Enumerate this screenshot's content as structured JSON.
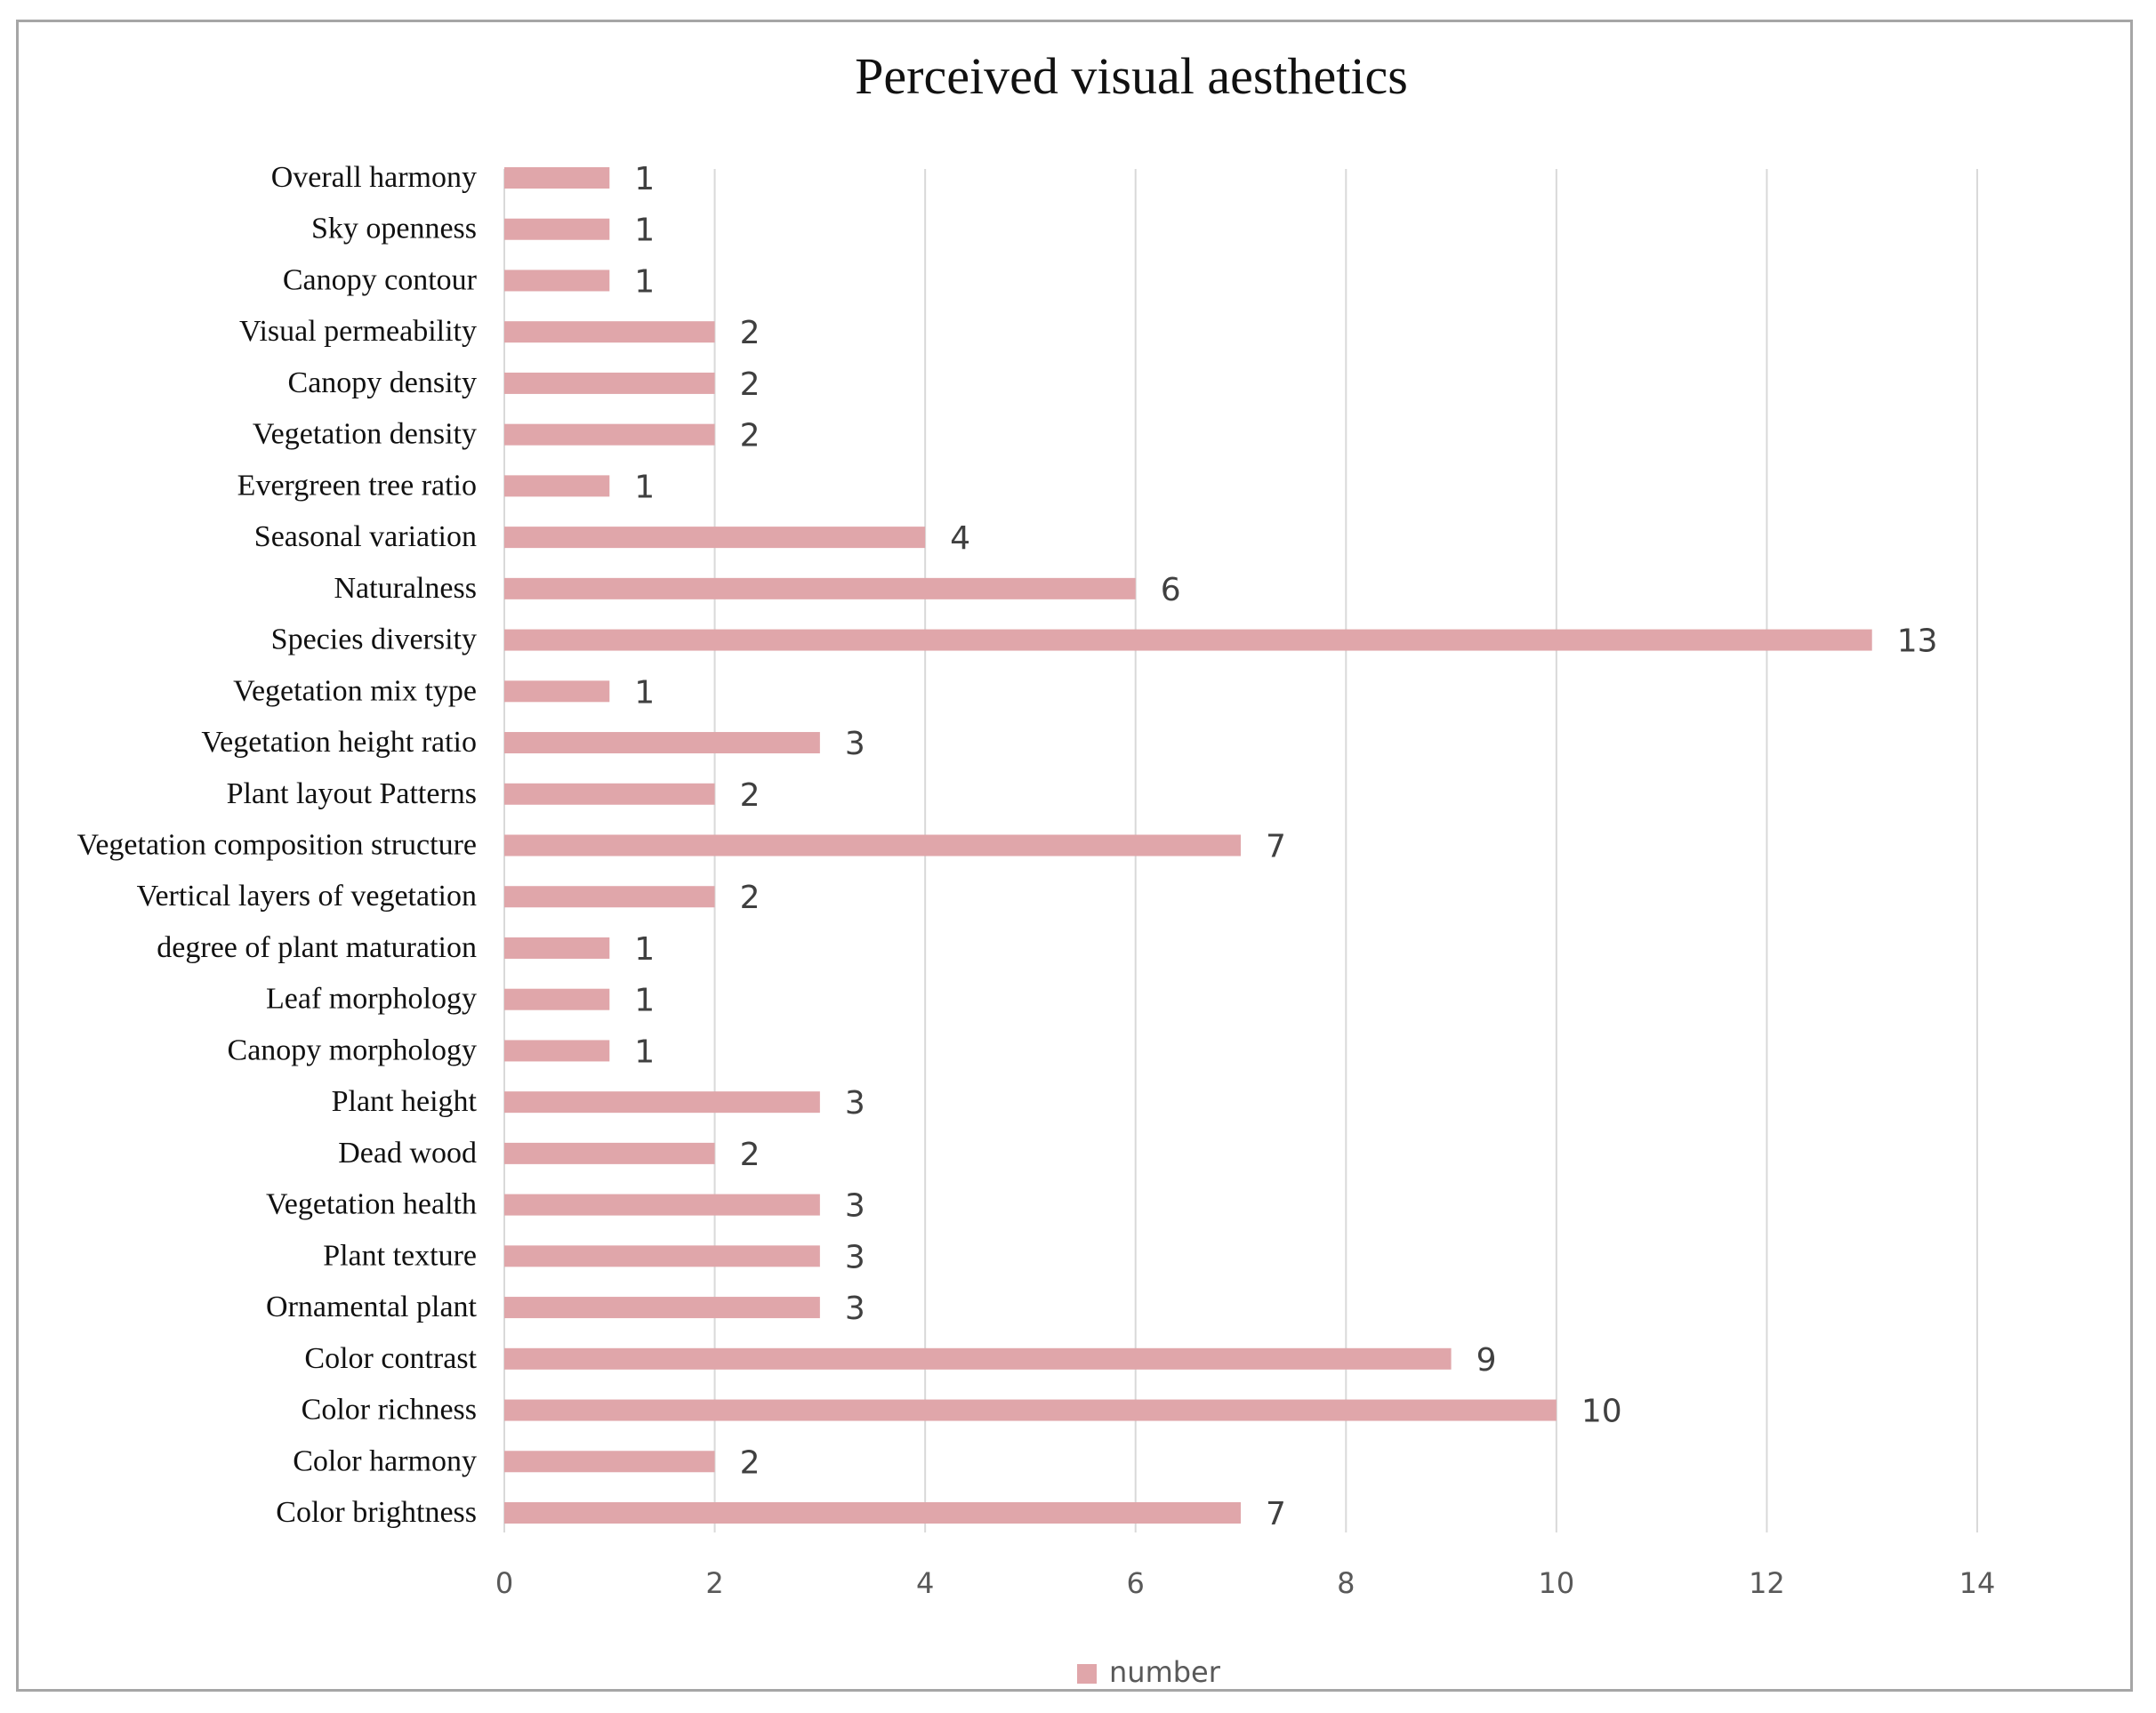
{
  "chart_data": {
    "type": "bar",
    "orientation": "horizontal",
    "title": "Perceived visual aesthetics",
    "categories": [
      "Overall harmony",
      "Sky openness",
      "Canopy contour",
      "Visual permeability",
      "Canopy density",
      "Vegetation density",
      "Evergreen tree ratio",
      "Seasonal variation",
      "Naturalness",
      "Species diversity",
      "Vegetation mix type",
      "Vegetation height ratio",
      "Plant layout Patterns",
      "Vegetation composition structure",
      "Vertical layers of vegetation",
      "degree of plant maturation",
      "Leaf morphology",
      "Canopy morphology",
      "Plant height",
      "Dead wood",
      "Vegetation health",
      "Plant texture",
      "Ornamental plant",
      "Color contrast",
      "Color richness",
      "Color harmony",
      "Color brightness"
    ],
    "series": [
      {
        "name": "number",
        "color": "#e0a6aa",
        "values": [
          1,
          1,
          1,
          2,
          2,
          2,
          1,
          4,
          6,
          13,
          1,
          3,
          2,
          7,
          2,
          1,
          1,
          1,
          3,
          2,
          3,
          3,
          3,
          9,
          10,
          2,
          7
        ]
      }
    ],
    "xlim": [
      0,
      14
    ],
    "xticks": [
      0,
      2,
      4,
      6,
      8,
      10,
      12,
      14
    ],
    "xlabel": "",
    "ylabel": "",
    "grid": "vertical",
    "legend": "bottom-center",
    "data_labels": true
  },
  "colors": {
    "bar": "#e0a6aa",
    "grid": "#d9d9d9",
    "frame": "#a6a6a6"
  }
}
